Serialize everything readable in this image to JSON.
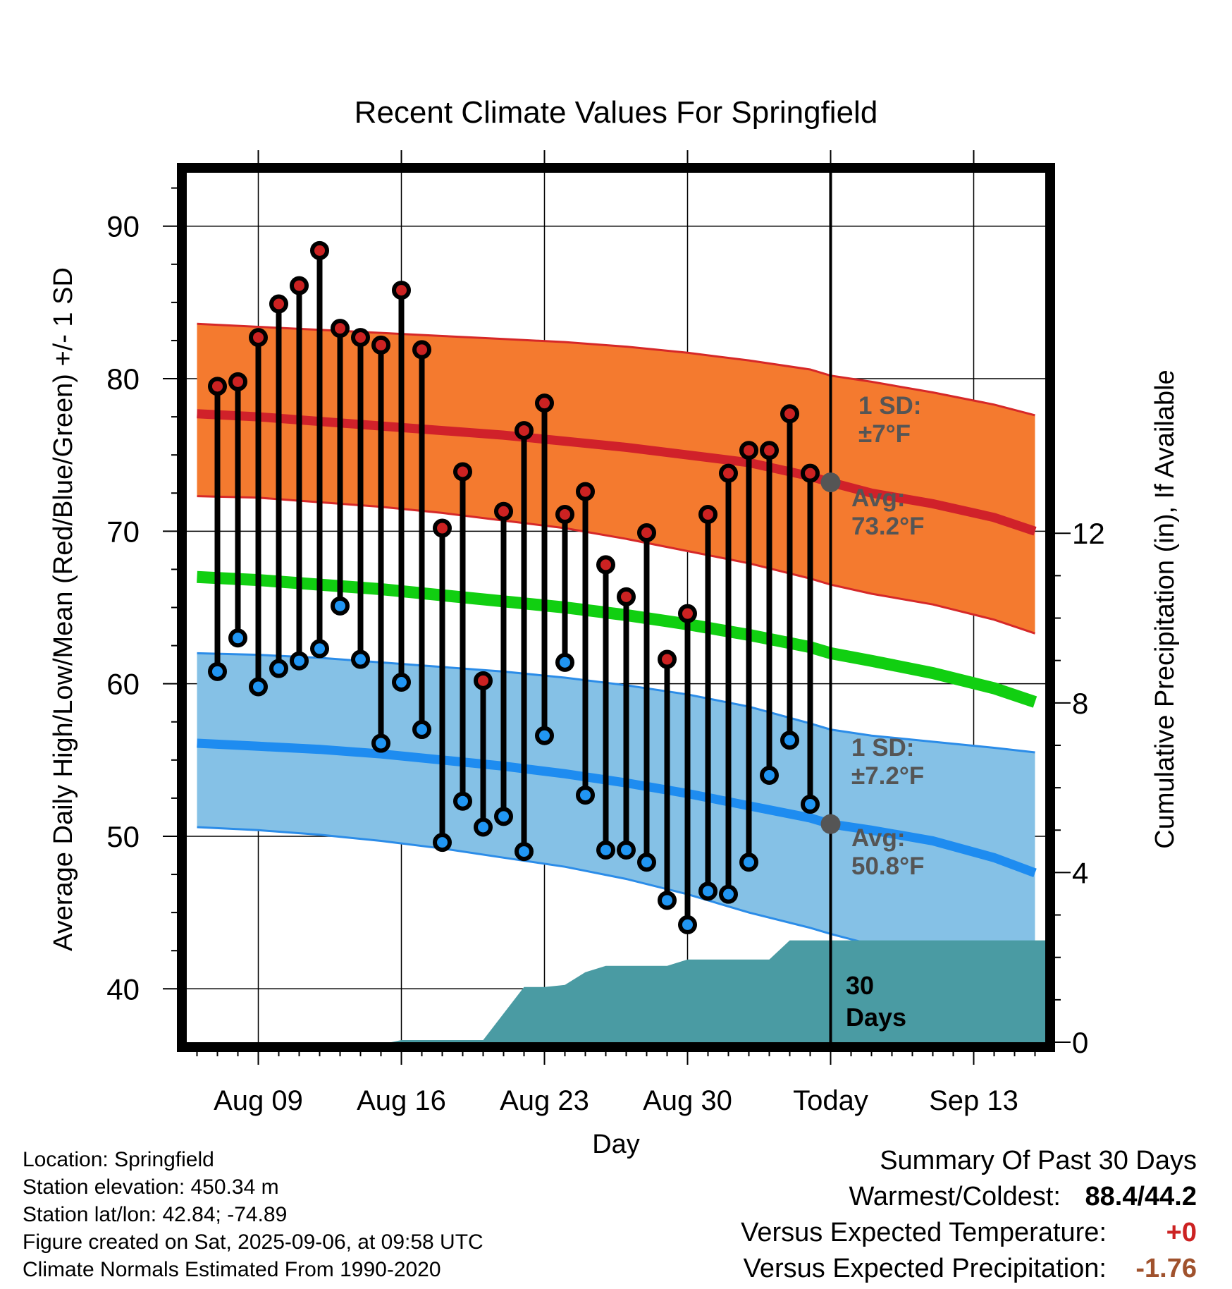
{
  "chart_data": {
    "type": "line",
    "title": "Recent Climate Values For Springfield",
    "xlabel": "Day",
    "ylabel": "Average Daily High/Low/Mean (Red/Blue/Green) +/- 1 SD",
    "y2label": "Cumulative Precipitation (in), If Available",
    "ylim": [
      36.5,
      93.5
    ],
    "y_ticks": [
      40,
      50,
      60,
      70,
      80,
      90
    ],
    "y2lim": [
      0,
      20.5
    ],
    "y2_ticks": [
      0,
      4,
      8,
      12
    ],
    "xlim": [
      -3.5,
      38.5
    ],
    "x_ticks": [
      {
        "day": 0,
        "label": "Aug 09"
      },
      {
        "day": 7,
        "label": "Aug 16"
      },
      {
        "day": 14,
        "label": "Aug 23"
      },
      {
        "day": 21,
        "label": "Aug 30"
      },
      {
        "day": 28,
        "label": "Today"
      },
      {
        "day": 35,
        "label": "Sep 13"
      }
    ],
    "x_minor_step": 1,
    "grid": true,
    "today_day": 28,
    "colors": {
      "high_band": "#f47a2f",
      "high_edge": "#d62828",
      "high_mean": "#d0212a",
      "low_band": "#85c1e6",
      "low_edge": "#2b8ce8",
      "low_mean": "#1e8cf0",
      "mean": "#11cf11",
      "precip": "#4a9ba3",
      "high_dot": "#cc2222",
      "low_dot": "#2196f3",
      "avg_marker": "#555555",
      "annotation": "#555555"
    },
    "normals": {
      "days": [
        -3,
        0,
        3,
        6,
        9,
        12,
        15,
        18,
        21,
        24,
        27,
        28,
        30,
        33,
        36,
        38
      ],
      "high_mean": [
        77.7,
        77.5,
        77.2,
        76.9,
        76.6,
        76.3,
        75.9,
        75.5,
        75.0,
        74.5,
        73.6,
        73.2,
        72.5,
        71.8,
        70.9,
        70.0
      ],
      "high_upper": [
        83.6,
        83.4,
        83.2,
        83.0,
        82.8,
        82.6,
        82.4,
        82.1,
        81.7,
        81.2,
        80.6,
        80.2,
        79.8,
        79.1,
        78.3,
        77.6
      ],
      "high_lower": [
        72.3,
        72.2,
        71.9,
        71.6,
        71.2,
        70.7,
        70.2,
        69.5,
        68.7,
        67.9,
        66.9,
        66.5,
        65.9,
        65.2,
        64.2,
        63.3
      ],
      "mean": [
        67.0,
        66.8,
        66.5,
        66.2,
        65.8,
        65.4,
        65.0,
        64.5,
        63.9,
        63.2,
        62.4,
        62.0,
        61.5,
        60.7,
        59.7,
        58.8
      ],
      "low_mean": [
        56.1,
        55.9,
        55.7,
        55.4,
        55.0,
        54.6,
        54.1,
        53.5,
        52.8,
        52.0,
        51.2,
        50.8,
        50.4,
        49.7,
        48.6,
        47.6
      ],
      "low_upper": [
        62.0,
        61.9,
        61.7,
        61.4,
        61.1,
        60.8,
        60.4,
        59.9,
        59.3,
        58.5,
        57.4,
        57.0,
        56.6,
        56.2,
        55.8,
        55.5
      ],
      "low_lower": [
        50.6,
        50.4,
        50.1,
        49.7,
        49.2,
        48.6,
        48.0,
        47.2,
        46.2,
        45.0,
        44.0,
        43.6,
        42.9,
        41.9,
        40.7,
        39.6
      ]
    },
    "observations": {
      "days": [
        -2,
        -1,
        0,
        1,
        2,
        3,
        4,
        5,
        6,
        7,
        8,
        9,
        10,
        11,
        12,
        13,
        14,
        15,
        16,
        17,
        18,
        19,
        20,
        21,
        22,
        23,
        24,
        25,
        26,
        27
      ],
      "high": [
        79.5,
        79.8,
        82.7,
        84.9,
        86.1,
        88.4,
        83.3,
        82.7,
        82.2,
        85.8,
        81.9,
        70.2,
        73.9,
        60.2,
        71.3,
        76.6,
        78.4,
        71.1,
        72.6,
        67.8,
        65.7,
        69.9,
        61.6,
        64.6,
        71.1,
        73.8,
        75.3,
        75.3,
        77.7,
        73.8
      ],
      "low": [
        60.8,
        63.0,
        59.8,
        61.0,
        61.5,
        62.3,
        65.1,
        61.6,
        56.1,
        60.1,
        57.0,
        49.6,
        52.3,
        50.6,
        51.3,
        49.0,
        56.6,
        61.4,
        52.7,
        49.1,
        49.1,
        48.3,
        45.8,
        44.2,
        46.4,
        46.2,
        48.3,
        54.0,
        56.3,
        52.1
      ]
    },
    "precipitation_cumulative": {
      "days": [
        4.5,
        6.5,
        7.0,
        10.0,
        11.0,
        13.0,
        14.0,
        15.0,
        16.0,
        17.0,
        18.0,
        20.0,
        21.0,
        22.0,
        23.0,
        24.0,
        25.0,
        26.0,
        27.0,
        28.0,
        38.5
      ],
      "values": [
        0.0,
        0.0,
        0.05,
        0.05,
        0.05,
        1.3,
        1.3,
        1.35,
        1.65,
        1.8,
        1.8,
        1.8,
        1.95,
        1.95,
        1.95,
        1.95,
        1.95,
        2.4,
        2.4,
        2.4,
        2.4
      ]
    },
    "annotations": {
      "high_sd_line1": "1 SD:",
      "high_sd_line2": "±7°F",
      "high_avg_line1": "Avg:",
      "high_avg_line2": "73.2°F",
      "low_sd_line1": "1 SD:",
      "low_sd_line2": "±7.2°F",
      "low_avg_line1": "Avg:",
      "low_avg_line2": "50.8°F",
      "precip_line1": "30",
      "precip_line2": "Days"
    }
  },
  "footer": {
    "location": "Location: Springfield",
    "elevation": "Station elevation: 450.34 m",
    "latlon": "Station lat/lon: 42.84; -74.89",
    "created": "Figure created on Sat, 2025-09-06, at 09:58 UTC",
    "normals": "Climate Normals Estimated From 1990-2020"
  },
  "summary": {
    "title": "Summary Of Past 30 Days",
    "warmest_coldest_label": "Warmest/Coldest:",
    "warmest_coldest_value": "88.4/44.2",
    "temp_label": "Versus Expected Temperature:",
    "temp_value": "+0",
    "temp_color": "#cc2222",
    "precip_label": "Versus Expected Precipitation:",
    "precip_value": "-1.76",
    "precip_color": "#a0522d"
  }
}
